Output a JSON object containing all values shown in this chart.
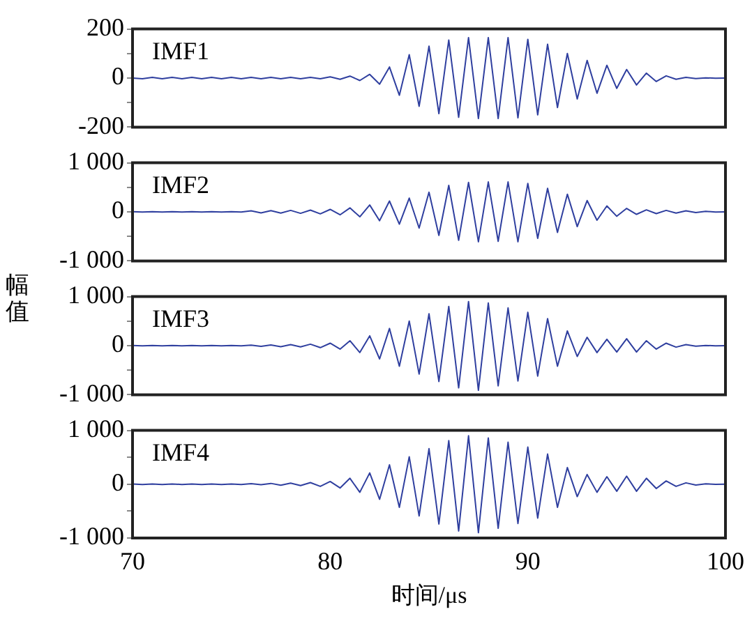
{
  "chart_data": [
    {
      "type": "line",
      "annotations": [
        "IMF1"
      ],
      "tick_labels": "y",
      "xlim": [
        70,
        100
      ],
      "xticks": [
        70,
        80,
        90,
        100
      ],
      "ylim": [
        -200,
        200
      ],
      "yticks": [
        -200,
        {
          "value": -100,
          "label": null
        },
        0,
        {
          "value": 100,
          "label": null
        },
        200
      ],
      "x": [
        70,
        70.5,
        71,
        71.5,
        72,
        72.5,
        73,
        73.5,
        74,
        74.5,
        75,
        75.5,
        76,
        76.5,
        77,
        77.5,
        78,
        78.5,
        79,
        79.5,
        80,
        80.5,
        81,
        81.5,
        82,
        82.5,
        83,
        83.5,
        84,
        84.5,
        85,
        85.5,
        86,
        86.5,
        87,
        87.5,
        88,
        88.5,
        89,
        89.5,
        90,
        90.5,
        91,
        91.5,
        92,
        92.5,
        93,
        93.5,
        94,
        94.5,
        95,
        95.5,
        96,
        96.5,
        97,
        97.5,
        98,
        98.5,
        99,
        99.5,
        100
      ],
      "series": [
        {
          "color": "#2f3f9f",
          "values": [
            0,
            -3,
            3,
            -3,
            3,
            -3,
            3,
            -3,
            3,
            -3,
            3,
            -3,
            3,
            -3,
            3,
            -3,
            3,
            -3,
            3,
            -3,
            5,
            -5,
            8,
            -10,
            15,
            -25,
            45,
            -70,
            95,
            -115,
            130,
            -145,
            155,
            -160,
            165,
            -165,
            165,
            -165,
            165,
            -162,
            158,
            -150,
            138,
            -120,
            100,
            -85,
            72,
            -62,
            52,
            -42,
            35,
            -28,
            20,
            -14,
            9,
            -5,
            3,
            -2,
            1,
            -1,
            0
          ]
        }
      ]
    },
    {
      "type": "line",
      "annotations": [
        "IMF2"
      ],
      "ylabel": "幅值",
      "tick_labels": "y",
      "xlim": [
        70,
        100
      ],
      "xticks": [
        70,
        80,
        90,
        100
      ],
      "ylim": [
        -1000,
        1000
      ],
      "yticks": [
        {
          "value": -1000,
          "label": "-1 000"
        },
        {
          "value": -500,
          "label": null
        },
        0,
        {
          "value": 500,
          "label": null
        },
        {
          "value": 1000,
          "label": "1 000"
        }
      ],
      "x": [
        70,
        70.5,
        71,
        71.5,
        72,
        72.5,
        73,
        73.5,
        74,
        74.5,
        75,
        75.5,
        76,
        76.5,
        77,
        77.5,
        78,
        78.5,
        79,
        79.5,
        80,
        80.5,
        81,
        81.5,
        82,
        82.5,
        83,
        83.5,
        84,
        84.5,
        85,
        85.5,
        86,
        86.5,
        87,
        87.5,
        88,
        88.5,
        89,
        89.5,
        90,
        90.5,
        91,
        91.5,
        92,
        92.5,
        93,
        93.5,
        94,
        94.5,
        95,
        95.5,
        96,
        96.5,
        97,
        97.5,
        98,
        98.5,
        99,
        99.5,
        100
      ],
      "series": [
        {
          "color": "#2f3f9f",
          "values": [
            5,
            -5,
            5,
            -5,
            5,
            -5,
            5,
            -5,
            5,
            -5,
            5,
            -5,
            20,
            -20,
            25,
            -25,
            30,
            -30,
            35,
            -40,
            50,
            -60,
            80,
            -100,
            140,
            -180,
            220,
            -250,
            280,
            -330,
            400,
            -480,
            540,
            -580,
            600,
            -610,
            610,
            -600,
            610,
            -610,
            580,
            -540,
            480,
            -420,
            360,
            -300,
            230,
            -170,
            120,
            -90,
            70,
            -50,
            40,
            -35,
            30,
            -25,
            20,
            -15,
            10,
            -5,
            0
          ]
        }
      ]
    },
    {
      "type": "line",
      "annotations": [
        "IMF3"
      ],
      "tick_labels": "y",
      "xlim": [
        70,
        100
      ],
      "xticks": [
        70,
        80,
        90,
        100
      ],
      "ylim": [
        -1000,
        1000
      ],
      "yticks": [
        {
          "value": -1000,
          "label": "-1 000"
        },
        {
          "value": -500,
          "label": null
        },
        0,
        {
          "value": 500,
          "label": null
        },
        {
          "value": 1000,
          "label": "1 000"
        }
      ],
      "x": [
        70,
        70.5,
        71,
        71.5,
        72,
        72.5,
        73,
        73.5,
        74,
        74.5,
        75,
        75.5,
        76,
        76.5,
        77,
        77.5,
        78,
        78.5,
        79,
        79.5,
        80,
        80.5,
        81,
        81.5,
        82,
        82.5,
        83,
        83.5,
        84,
        84.5,
        85,
        85.5,
        86,
        86.5,
        87,
        87.5,
        88,
        88.5,
        89,
        89.5,
        90,
        90.5,
        91,
        91.5,
        92,
        92.5,
        93,
        93.5,
        94,
        94.5,
        95,
        95.5,
        96,
        96.5,
        97,
        97.5,
        98,
        98.5,
        99,
        99.5,
        100
      ],
      "series": [
        {
          "color": "#2f3f9f",
          "values": [
            5,
            -5,
            5,
            -5,
            5,
            -5,
            5,
            -5,
            5,
            -5,
            5,
            -5,
            10,
            -15,
            15,
            -20,
            20,
            -25,
            30,
            -40,
            50,
            -70,
            100,
            -140,
            200,
            -270,
            350,
            -420,
            500,
            -580,
            650,
            -730,
            800,
            -860,
            900,
            -910,
            870,
            -820,
            770,
            -720,
            680,
            -620,
            550,
            -420,
            300,
            -220,
            170,
            -140,
            130,
            -130,
            140,
            -130,
            100,
            -70,
            50,
            -30,
            20,
            -10,
            5,
            -3,
            0
          ]
        }
      ]
    },
    {
      "type": "line",
      "annotations": [
        "IMF4"
      ],
      "xlabel": "时间/μs",
      "xlim": [
        70,
        100
      ],
      "xticks": [
        70,
        80,
        90,
        100
      ],
      "ylim": [
        -1000,
        1000
      ],
      "yticks": [
        {
          "value": -1000,
          "label": "-1 000"
        },
        {
          "value": -500,
          "label": null
        },
        0,
        {
          "value": 500,
          "label": null
        },
        {
          "value": 1000,
          "label": "1 000"
        }
      ],
      "x": [
        70,
        70.5,
        71,
        71.5,
        72,
        72.5,
        73,
        73.5,
        74,
        74.5,
        75,
        75.5,
        76,
        76.5,
        77,
        77.5,
        78,
        78.5,
        79,
        79.5,
        80,
        80.5,
        81,
        81.5,
        82,
        82.5,
        83,
        83.5,
        84,
        84.5,
        85,
        85.5,
        86,
        86.5,
        87,
        87.5,
        88,
        88.5,
        89,
        89.5,
        90,
        90.5,
        91,
        91.5,
        92,
        92.5,
        93,
        93.5,
        94,
        94.5,
        95,
        95.5,
        96,
        96.5,
        97,
        97.5,
        98,
        98.5,
        99,
        99.5,
        100
      ],
      "series": [
        {
          "color": "#2f3f9f",
          "values": [
            5,
            -5,
            5,
            -5,
            5,
            -5,
            5,
            -5,
            5,
            -5,
            5,
            -5,
            10,
            -10,
            15,
            -20,
            20,
            -25,
            30,
            -40,
            50,
            -70,
            110,
            -150,
            210,
            -280,
            360,
            -430,
            510,
            -590,
            660,
            -740,
            810,
            -870,
            900,
            -900,
            860,
            -820,
            780,
            -730,
            690,
            -630,
            560,
            -430,
            310,
            -230,
            180,
            -150,
            140,
            -130,
            150,
            -130,
            110,
            -80,
            60,
            -40,
            25,
            -15,
            8,
            -4,
            0
          ]
        }
      ]
    }
  ]
}
